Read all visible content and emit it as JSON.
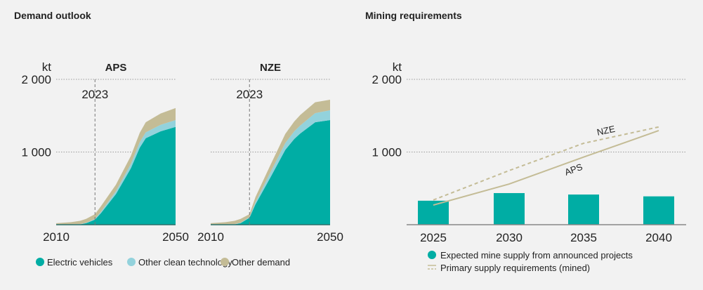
{
  "colors": {
    "ev": "#00ada4",
    "clean": "#93d2dc",
    "other": "#c4bc96",
    "bar": "#00ada4",
    "line": "#c4bc96"
  },
  "chart_data": [
    {
      "type": "area",
      "title": "Demand outlook",
      "ylabel": "kt",
      "ylim": [
        0,
        2000
      ],
      "yticks": [
        1000,
        2000
      ],
      "ytick_labels": [
        "1 000",
        "2 000"
      ],
      "xlim": [
        2010,
        2050
      ],
      "xtick_labels": [
        "2010",
        "2050"
      ],
      "marker_year": 2023,
      "marker_label": "2023",
      "legend": [
        "Electric vehicles",
        "Other clean technology",
        "Other demand"
      ],
      "x": [
        2010,
        2015,
        2018,
        2020,
        2023,
        2025,
        2030,
        2035,
        2038,
        2040,
        2045,
        2050
      ],
      "panels": [
        {
          "name": "APS",
          "series": [
            {
              "name": "Electric vehicles",
              "values": [
                1,
                3,
                5,
                20,
                70,
                160,
                420,
                775,
                1060,
                1190,
                1285,
                1345
              ]
            },
            {
              "name": "Other clean technology",
              "values": [
                1,
                2,
                3,
                5,
                10,
                20,
                40,
                60,
                75,
                80,
                90,
                95
              ]
            },
            {
              "name": "Other demand",
              "values": [
                18,
                30,
                45,
                55,
                65,
                75,
                90,
                110,
                130,
                140,
                155,
                165
              ]
            }
          ]
        },
        {
          "name": "NZE",
          "series": [
            {
              "name": "Electric vehicles",
              "values": [
                1,
                3,
                5,
                20,
                95,
                280,
                650,
                1030,
                1180,
                1255,
                1410,
                1440
              ]
            },
            {
              "name": "Other clean technology",
              "values": [
                1,
                2,
                3,
                5,
                10,
                30,
                70,
                95,
                105,
                110,
                125,
                135
              ]
            },
            {
              "name": "Other demand",
              "values": [
                18,
                30,
                45,
                55,
                40,
                70,
                100,
                125,
                135,
                145,
                150,
                145
              ]
            }
          ]
        }
      ]
    },
    {
      "type": "bar",
      "title": "Mining requirements",
      "ylabel": "kt",
      "ylim": [
        0,
        2000
      ],
      "yticks": [
        1000,
        2000
      ],
      "ytick_labels": [
        "1 000",
        "2 000"
      ],
      "categories": [
        "2025",
        "2030",
        "2035",
        "2040"
      ],
      "bars": {
        "name": "Expected mine supply from announced projects",
        "values": [
          330,
          435,
          415,
          390
        ]
      },
      "lines": [
        {
          "name": "APS",
          "style": "solid",
          "values": [
            270,
            560,
            930,
            1295
          ]
        },
        {
          "name": "NZE",
          "style": "dashed",
          "values": [
            340,
            745,
            1120,
            1345
          ]
        }
      ],
      "line_legend": "Primary supply requirements (mined)"
    }
  ]
}
